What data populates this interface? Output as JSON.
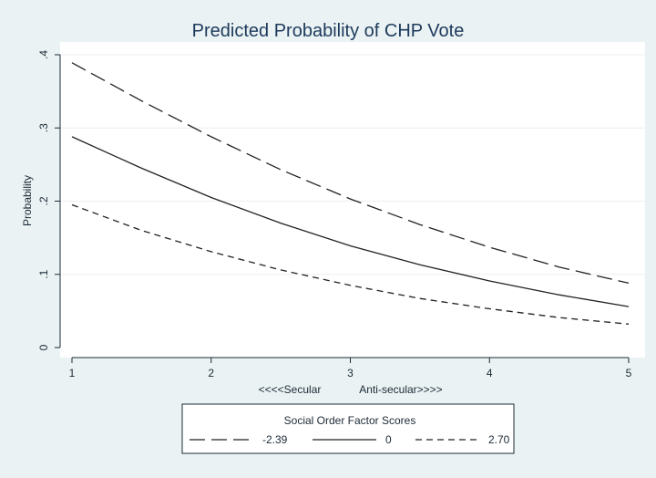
{
  "chart_data": {
    "type": "line",
    "title": "Predicted Probability of CHP Vote",
    "xlabel_left": "<<<<Secular",
    "xlabel_right": "Anti-secular>>>>",
    "ylabel": "Probability",
    "xlim": [
      1,
      5
    ],
    "ylim": [
      0,
      0.4
    ],
    "x_ticks": [
      1,
      2,
      3,
      4,
      5
    ],
    "y_ticks": [
      0,
      0.1,
      0.2,
      0.3,
      0.4
    ],
    "y_tick_labels": [
      "0",
      ".1",
      ".2",
      ".3",
      ".4"
    ],
    "grid": true,
    "x": [
      1,
      1.5,
      2,
      2.5,
      3,
      3.5,
      4,
      4.5,
      5
    ],
    "series": [
      {
        "name": "-2.39",
        "dash": "long-dash",
        "values": [
          0.389,
          0.337,
          0.288,
          0.243,
          0.203,
          0.168,
          0.137,
          0.11,
          0.088
        ]
      },
      {
        "name": "0",
        "dash": "solid",
        "values": [
          0.288,
          0.245,
          0.205,
          0.17,
          0.139,
          0.113,
          0.091,
          0.072,
          0.056
        ]
      },
      {
        "name": "2.70",
        "dash": "short-dash",
        "values": [
          0.195,
          0.16,
          0.131,
          0.106,
          0.085,
          0.067,
          0.053,
          0.041,
          0.032
        ]
      }
    ],
    "legend": {
      "title": "Social Order Factor Scores",
      "placement": "bottom"
    },
    "colors": {
      "background": "#eaf2f3",
      "plot_area": "#ffffff",
      "grid": "#e8eef0",
      "line": "#222222",
      "title": "#1d3a5c"
    }
  }
}
